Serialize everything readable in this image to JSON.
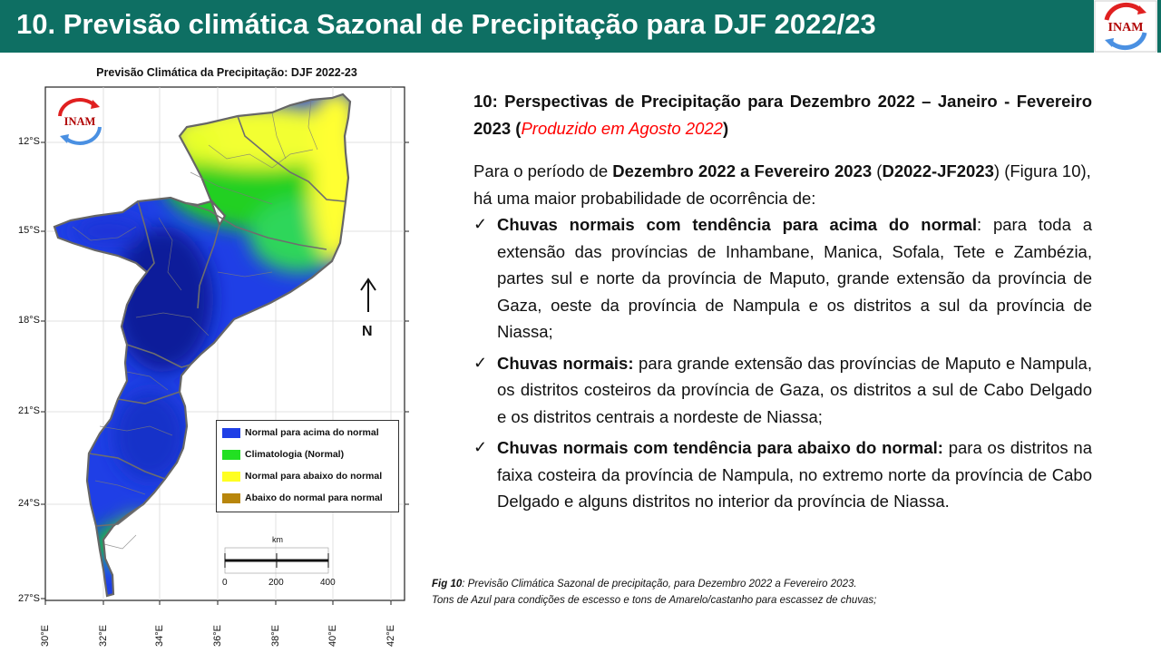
{
  "slide": {
    "title": "10. Previsão climática Sazonal de Precipitação para DJF 2022/23",
    "logo_text": "INAM"
  },
  "map": {
    "title": "Previsão Climática da Precipitação: DJF 2022-23",
    "logo_text": "INAM",
    "lat_labels": [
      "12°S",
      "15°S",
      "18°S",
      "21°S",
      "24°S",
      "27°S"
    ],
    "lon_labels": [
      "30°E",
      "32°E",
      "34°E",
      "36°E",
      "38°E",
      "40°E",
      "42°E"
    ],
    "legend": [
      {
        "label": "Normal para acima do normal",
        "color": "#1f3fe6"
      },
      {
        "label": "Climatologia (Normal)",
        "color": "#22e022"
      },
      {
        "label": "Normal para abaixo do normal",
        "color": "#ffff22"
      },
      {
        "label": "Abaixo do normal para normal",
        "color": "#b8860b"
      }
    ],
    "north_label": "N",
    "scale_unit": "km",
    "scale_ticks": [
      "0",
      "200",
      "400"
    ],
    "colors": {
      "deep_blue": "#0f1f9a",
      "blue": "#1f3fe6",
      "green": "#22d022",
      "yellow": "#ffff33",
      "border": "#6e6e6e"
    }
  },
  "text": {
    "heading_bold": "10: Perspectivas de Precipitação para Dezembro 2022 – Janeiro - Fevereiro 2023 (",
    "heading_red": "Produzido em Agosto 2022",
    "heading_end": ")",
    "intro_1": "Para o período de ",
    "intro_bold_1": "Dezembro 2022 a Fevereiro 2023",
    "intro_2": " (",
    "intro_bold_2": "D2022-JF2023",
    "intro_3": ") (Figura 10), há uma maior probabilidade de ocorrência de:",
    "bullets": [
      {
        "bold": "Chuvas normais com tendência para acima do normal",
        "rest": ": para toda a extensão das províncias de Inhambane, Manica, Sofala, Tete e Zambézia, partes sul e norte da província de Maputo, grande extensão da província de Gaza, oeste da província de Nampula e os distritos a sul da província de Niassa;"
      },
      {
        "bold": "Chuvas normais:",
        "rest": " para grande extensão das províncias de Maputo e Nampula, os distritos costeiros da província de Gaza, os distritos a sul de Cabo Delgado e os distritos centrais a nordeste de Niassa;"
      },
      {
        "bold": "Chuvas normais com tendência para abaixo do normal:",
        "rest": " para os distritos na faixa costeira da província de Nampula, no extremo norte da província de Cabo Delgado e alguns distritos no interior da província de Niassa."
      }
    ],
    "check_glyph": "✓"
  },
  "caption": {
    "label": "Fig 10",
    "line1": ": Previsão Climática Sazonal de precipitação, para Dezembro 2022 a Fevereiro 2023.",
    "line2": "Tons de Azul para condições de escesso e tons de Amarelo/castanho para escassez de chuvas;"
  }
}
